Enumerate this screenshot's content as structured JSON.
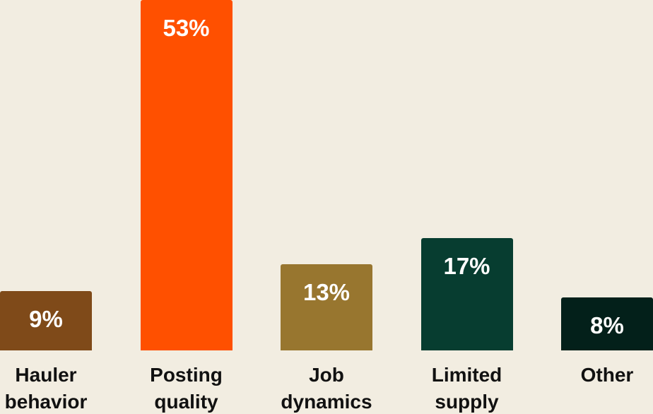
{
  "chart_data": {
    "type": "bar",
    "categories": [
      "Hauler behavior",
      "Posting quality",
      "Job dynamics",
      "Limited supply",
      "Other"
    ],
    "values": [
      9,
      53,
      13,
      17,
      8
    ],
    "value_labels": [
      "9%",
      "53%",
      "13%",
      "17%",
      "8%"
    ],
    "colors": [
      "#7f4a19",
      "#ff5000",
      "#98762f",
      "#073d30",
      "#03201a"
    ]
  }
}
